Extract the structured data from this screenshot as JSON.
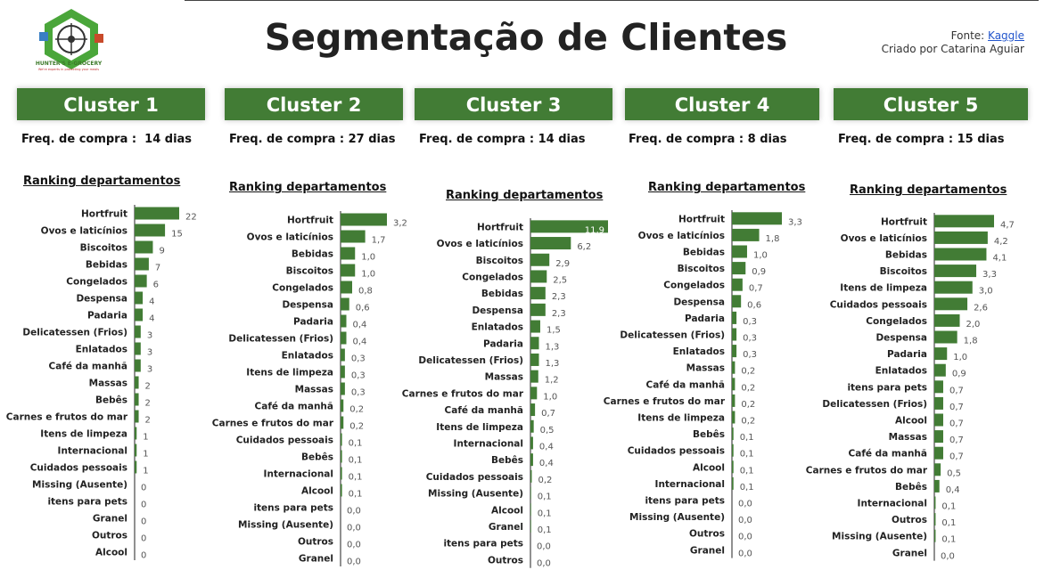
{
  "header": {
    "title": "Segmentação de Clientes",
    "source_prefix": "Fonte: ",
    "source_link": "Kaggle",
    "created_by": "Criado por Catarina Aguiar",
    "logo_text": "HUNTER'S E-GROCERY",
    "logo_subtext": "We're experts in protecting your meals"
  },
  "colors": {
    "bar": "#427c35",
    "header_bg": "#427c35",
    "axis": "#222222"
  },
  "chart_data": [
    {
      "type": "bar",
      "orientation": "horizontal",
      "cluster": "Cluster 1",
      "freq_label": "Freq. de compra :  14 dias",
      "title": "Ranking departamentos",
      "categories": [
        "Hortfruit",
        "Ovos e laticínios",
        "Biscoitos",
        "Bebidas",
        "Congelados",
        "Despensa",
        "Padaria",
        "Delicatessen (Frios)",
        "Enlatados",
        "Café da manhã",
        "Massas",
        "Bebês",
        "Carnes e frutos do mar",
        "Itens de limpeza",
        "Internacional",
        "Cuidados pessoais",
        "Missing (Ausente)",
        "itens para pets",
        "Granel",
        "Outros",
        "Alcool"
      ],
      "values": [
        22,
        15,
        9,
        7,
        6,
        4,
        4,
        3,
        3,
        3,
        2,
        2,
        2,
        1,
        1,
        1,
        0,
        0,
        0,
        0,
        0
      ],
      "value_labels": [
        "22",
        "15",
        "9",
        "7",
        "6",
        "4",
        "4",
        "3",
        "3",
        "3",
        "2",
        "2",
        "2",
        "1",
        "1",
        "1",
        "0",
        "0",
        "0",
        "0",
        "0"
      ]
    },
    {
      "type": "bar",
      "orientation": "horizontal",
      "cluster": "Cluster 2",
      "freq_label": "Freq. de compra : 27 dias",
      "title": "Ranking departamentos",
      "categories": [
        "Hortfruit",
        "Ovos e laticínios",
        "Bebidas",
        "Biscoitos",
        "Congelados",
        "Despensa",
        "Padaria",
        "Delicatessen (Frios)",
        "Enlatados",
        "Itens de limpeza",
        "Massas",
        "Café da manhã",
        "Carnes e frutos do mar",
        "Cuidados pessoais",
        "Bebês",
        "Internacional",
        "Alcool",
        "itens para pets",
        "Missing (Ausente)",
        "Outros",
        "Granel"
      ],
      "values": [
        3.2,
        1.7,
        1.0,
        1.0,
        0.8,
        0.6,
        0.4,
        0.4,
        0.3,
        0.3,
        0.3,
        0.2,
        0.2,
        0.1,
        0.1,
        0.1,
        0.1,
        0.0,
        0.0,
        0.0,
        0.0
      ],
      "value_labels": [
        "3,2",
        "1,7",
        "1,0",
        "1,0",
        "0,8",
        "0,6",
        "0,4",
        "0,4",
        "0,3",
        "0,3",
        "0,3",
        "0,2",
        "0,2",
        "0,1",
        "0,1",
        "0,1",
        "0,1",
        "0,0",
        "0,0",
        "0,0",
        "0,0"
      ]
    },
    {
      "type": "bar",
      "orientation": "horizontal",
      "cluster": "Cluster 3",
      "freq_label": "Freq. de compra : 14 dias",
      "title": "Ranking departamentos",
      "categories": [
        "Hortfruit",
        "Ovos e laticínios",
        "Biscoitos",
        "Congelados",
        "Bebidas",
        "Despensa",
        "Enlatados",
        "Padaria",
        "Delicatessen (Frios)",
        "Massas",
        "Carnes e frutos do mar",
        "Café da manhã",
        "Itens de limpeza",
        "Internacional",
        "Bebês",
        "Cuidados pessoais",
        "Missing (Ausente)",
        "Alcool",
        "Granel",
        "itens para pets",
        "Outros"
      ],
      "values": [
        11.9,
        6.2,
        2.9,
        2.5,
        2.3,
        2.3,
        1.5,
        1.3,
        1.3,
        1.2,
        1.0,
        0.7,
        0.5,
        0.4,
        0.4,
        0.2,
        0.1,
        0.1,
        0.1,
        0.0,
        0.0
      ],
      "value_labels": [
        "11,9",
        "6,2",
        "2,9",
        "2,5",
        "2,3",
        "2,3",
        "1,5",
        "1,3",
        "1,3",
        "1,2",
        "1,0",
        "0,7",
        "0,5",
        "0,4",
        "0,4",
        "0,2",
        "0,1",
        "0,1",
        "0,1",
        "0,0",
        "0,0"
      ]
    },
    {
      "type": "bar",
      "orientation": "horizontal",
      "cluster": "Cluster 4",
      "freq_label": "Freq. de compra : 8 dias",
      "title": "Ranking departamentos",
      "categories": [
        "Hortfruit",
        "Ovos e laticínios",
        "Bebidas",
        "Biscoitos",
        "Congelados",
        "Despensa",
        "Padaria",
        "Delicatessen (Frios)",
        "Enlatados",
        "Massas",
        "Café da manhã",
        "Carnes e frutos do mar",
        "Itens de limpeza",
        "Bebês",
        "Cuidados pessoais",
        "Alcool",
        "Internacional",
        "itens para pets",
        "Missing (Ausente)",
        "Outros",
        "Granel"
      ],
      "values": [
        3.3,
        1.8,
        1.0,
        0.9,
        0.7,
        0.6,
        0.3,
        0.3,
        0.3,
        0.2,
        0.2,
        0.2,
        0.2,
        0.1,
        0.1,
        0.1,
        0.1,
        0.0,
        0.0,
        0.0,
        0.0
      ],
      "value_labels": [
        "3,3",
        "1,8",
        "1,0",
        "0,9",
        "0,7",
        "0,6",
        "0,3",
        "0,3",
        "0,3",
        "0,2",
        "0,2",
        "0,2",
        "0,2",
        "0,1",
        "0,1",
        "0,1",
        "0,1",
        "0,0",
        "0,0",
        "0,0",
        "0,0"
      ]
    },
    {
      "type": "bar",
      "orientation": "horizontal",
      "cluster": "Cluster 5",
      "freq_label": "Freq. de compra : 15 dias",
      "title": "Ranking departamentos",
      "categories": [
        "Hortfruit",
        "Ovos e laticínios",
        "Bebidas",
        "Biscoitos",
        "Itens de limpeza",
        "Cuidados pessoais",
        "Congelados",
        "Despensa",
        "Padaria",
        "Enlatados",
        "itens para pets",
        "Delicatessen (Frios)",
        "Alcool",
        "Massas",
        "Café da manhã",
        "Carnes e frutos do mar",
        "Bebês",
        "Internacional",
        "Outros",
        "Missing (Ausente)",
        "Granel"
      ],
      "values": [
        4.7,
        4.2,
        4.1,
        3.3,
        3.0,
        2.6,
        2.0,
        1.8,
        1.0,
        0.9,
        0.7,
        0.7,
        0.7,
        0.7,
        0.7,
        0.5,
        0.4,
        0.1,
        0.1,
        0.1,
        0.0
      ],
      "value_labels": [
        "4,7",
        "4,2",
        "4,1",
        "3,3",
        "3,0",
        "2,6",
        "2,0",
        "1,8",
        "1,0",
        "0,9",
        "0,7",
        "0,7",
        "0,7",
        "0,7",
        "0,7",
        "0,5",
        "0,4",
        "0,1",
        "0,1",
        "0,1",
        "0,0"
      ]
    }
  ]
}
